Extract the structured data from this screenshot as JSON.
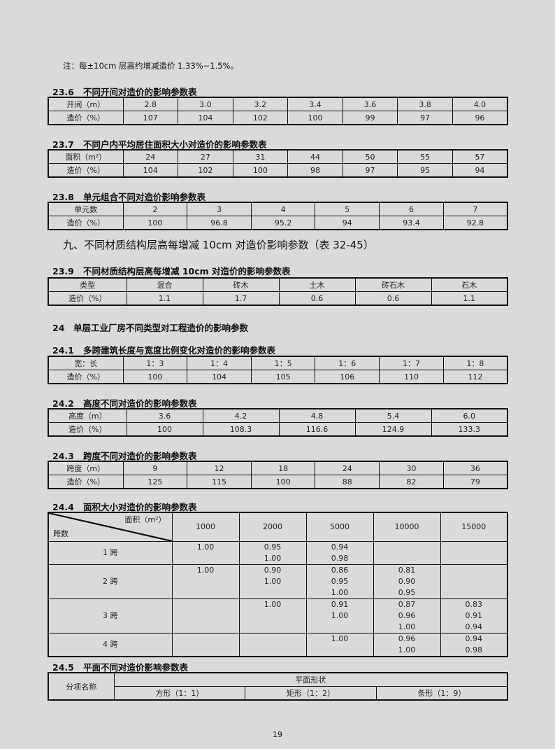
{
  "note": "注：每±10cm 层高约增减造价 1.33%~1.5%。",
  "t236": {
    "num": "23.6",
    "title": "不同开间对造价的影响参数表",
    "rows": [
      [
        "开间（m）",
        "2.8",
        "3.0",
        "3.2",
        "3.4",
        "3.6",
        "3.8",
        "4.0"
      ],
      [
        "造价（%）",
        "107",
        "104",
        "102",
        "100",
        "99",
        "97",
        "96"
      ]
    ]
  },
  "t237": {
    "num": "23.7",
    "title": "不同户内平均居住面积大小对造价的影响参数表",
    "rows": [
      [
        "面积（m²）",
        "24",
        "27",
        "31",
        "44",
        "50",
        "55",
        "57"
      ],
      [
        "造价（%）",
        "104",
        "102",
        "100",
        "98",
        "97",
        "95",
        "94"
      ]
    ]
  },
  "t238": {
    "num": "23.8",
    "title": "单元组合不同对造价影响参数表",
    "rows": [
      [
        "单元数",
        "2",
        "3",
        "4",
        "5",
        "6",
        "7"
      ],
      [
        "造价（%）",
        "100",
        "96.8",
        "95.2",
        "94",
        "93.4",
        "92.8"
      ]
    ]
  },
  "section9": "九、不同材质结构层高每增减 10cm 对造价影响参数（表 32-45）",
  "t239": {
    "num": "23.9",
    "title": "不同材质结构层高每增减  10cm 对造价的影响参数表",
    "rows": [
      [
        "类型",
        "混合",
        "砖木",
        "土木",
        "砖石木",
        "石木"
      ],
      [
        "造价（%）",
        "1.1",
        "1.7",
        "0.6",
        "0.6",
        "1.1"
      ]
    ]
  },
  "section24": {
    "num": "24",
    "title": "单层工业厂房不同类型对工程造价的影响参数"
  },
  "t241": {
    "num": "24.1",
    "title": "多跨建筑长度与宽度比例变化对造价的影响参数表",
    "rows": [
      [
        "宽：长",
        "1：3",
        "1：4",
        "1：5",
        "1：6",
        "1：7",
        "1：8"
      ],
      [
        "造价（%）",
        "100",
        "104",
        "105",
        "106",
        "110",
        "112"
      ]
    ]
  },
  "t242": {
    "num": "24.2",
    "title": "高度不同对造价的影响参数表",
    "rows": [
      [
        "高度（m）",
        "3.6",
        "4.2",
        "4.8",
        "5.4",
        "6.0"
      ],
      [
        "造价（%）",
        "100",
        "108.3",
        "116.6",
        "124.9",
        "133.3"
      ]
    ]
  },
  "t243": {
    "num": "24.3",
    "title": "跨度不同对造价的影响参数表",
    "rows": [
      [
        "跨度（m）",
        "9",
        "12",
        "18",
        "24",
        "30",
        "36"
      ],
      [
        "造价（%）",
        "125",
        "115",
        "100",
        "88",
        "82",
        "79"
      ]
    ]
  },
  "t244": {
    "num": "24.4",
    "title": "面积大小对造价的影响参数表",
    "corner_top": "面积（m²）",
    "corner_bottom": "跨数",
    "cols": [
      "1000",
      "2000",
      "5000",
      "10000",
      "15000"
    ],
    "rows": [
      {
        "label": "1 跨",
        "cells": [
          [
            "1.00"
          ],
          [
            "0.95",
            "1.00"
          ],
          [
            "0.94",
            "0.98"
          ],
          [],
          []
        ]
      },
      {
        "label": "2 跨",
        "cells": [
          [
            "1.00"
          ],
          [
            "0.90",
            "1.00"
          ],
          [
            "0.86",
            "0.95",
            "1.00"
          ],
          [
            "0.81",
            "0.90",
            "0.95"
          ],
          []
        ]
      },
      {
        "label": "3 跨",
        "cells": [
          [],
          [
            "1.00"
          ],
          [
            "0.91",
            "1.00"
          ],
          [
            "0.87",
            "0.96",
            "1.00"
          ],
          [
            "0.83",
            "0.91",
            "0.94"
          ]
        ]
      },
      {
        "label": "4 跨",
        "cells": [
          [],
          [],
          [
            "1.00"
          ],
          [
            "0.96",
            "1.00"
          ],
          [
            "0.94",
            "0.98"
          ]
        ]
      }
    ]
  },
  "t245": {
    "num": "24.5",
    "title": "平面不同对造价影响参数表",
    "row_header": "分项名称",
    "group_header": "平面形状",
    "cols": [
      "方形（1：1）",
      "矩形（1：2）",
      "条形（1：9）"
    ]
  },
  "page_number": "19"
}
